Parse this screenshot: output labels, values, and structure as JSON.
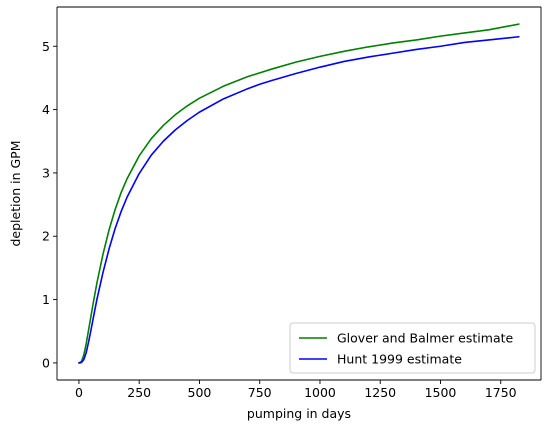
{
  "chart_data": {
    "type": "line",
    "title": "",
    "xlabel": "pumping in days",
    "ylabel": "depletion in GPM",
    "xlim": [
      -91,
      1917
    ],
    "ylim": [
      -0.27,
      5.62
    ],
    "xticks": [
      0,
      250,
      500,
      750,
      1000,
      1250,
      1500,
      1750
    ],
    "yticks": [
      0,
      1,
      2,
      3,
      4,
      5
    ],
    "grid": false,
    "legend_position": "lower-right",
    "series": [
      {
        "name": "Glover and Balmer estimate",
        "color": "#008000",
        "x": [
          0,
          10,
          20,
          30,
          40,
          50,
          60,
          75,
          100,
          125,
          150,
          175,
          200,
          250,
          300,
          350,
          400,
          450,
          500,
          600,
          700,
          750,
          800,
          900,
          1000,
          1100,
          1200,
          1250,
          1300,
          1400,
          1500,
          1600,
          1700,
          1825
        ],
        "y": [
          0,
          0.02,
          0.12,
          0.3,
          0.52,
          0.74,
          0.96,
          1.27,
          1.72,
          2.1,
          2.42,
          2.69,
          2.91,
          3.27,
          3.54,
          3.75,
          3.92,
          4.06,
          4.18,
          4.37,
          4.52,
          4.58,
          4.64,
          4.75,
          4.84,
          4.92,
          4.99,
          5.02,
          5.05,
          5.1,
          5.16,
          5.21,
          5.26,
          5.35
        ]
      },
      {
        "name": "Hunt 1999 estimate",
        "color": "#0000ff",
        "x": [
          0,
          10,
          20,
          30,
          40,
          50,
          60,
          75,
          100,
          125,
          150,
          175,
          200,
          250,
          300,
          350,
          400,
          450,
          500,
          600,
          700,
          750,
          800,
          900,
          1000,
          1100,
          1200,
          1250,
          1300,
          1400,
          1500,
          1600,
          1700,
          1825
        ],
        "y": [
          0,
          0.005,
          0.05,
          0.16,
          0.33,
          0.52,
          0.72,
          1.01,
          1.43,
          1.8,
          2.12,
          2.39,
          2.62,
          2.99,
          3.28,
          3.5,
          3.68,
          3.83,
          3.96,
          4.17,
          4.33,
          4.4,
          4.46,
          4.57,
          4.67,
          4.76,
          4.83,
          4.86,
          4.89,
          4.95,
          5.0,
          5.06,
          5.1,
          5.15
        ]
      }
    ]
  }
}
